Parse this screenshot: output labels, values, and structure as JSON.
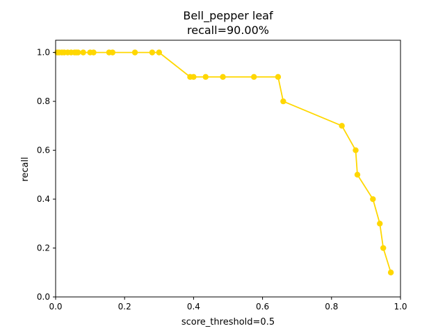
{
  "chart_data": {
    "type": "line",
    "title": "Bell_pepper leaf",
    "subtitle": "recall=90.00%",
    "xlabel": "score_threshold=0.5",
    "ylabel": "recall",
    "xlim": [
      0.0,
      1.0
    ],
    "ylim": [
      0.0,
      1.05
    ],
    "xticks": [
      "0.0",
      "0.2",
      "0.4",
      "0.6",
      "0.8",
      "1.0"
    ],
    "yticks": [
      "0.0",
      "0.2",
      "0.4",
      "0.6",
      "0.8",
      "1.0"
    ],
    "grid": false,
    "series": [
      {
        "color": "#ffd700",
        "x": [
          0.005,
          0.01,
          0.018,
          0.025,
          0.035,
          0.045,
          0.055,
          0.06,
          0.065,
          0.08,
          0.1,
          0.11,
          0.155,
          0.165,
          0.23,
          0.28,
          0.3,
          0.39,
          0.4,
          0.435,
          0.485,
          0.575,
          0.645,
          0.66,
          0.83,
          0.87,
          0.875,
          0.92,
          0.94,
          0.95,
          0.972
        ],
        "y": [
          1.0,
          1.0,
          1.0,
          1.0,
          1.0,
          1.0,
          1.0,
          1.0,
          1.0,
          1.0,
          1.0,
          1.0,
          1.0,
          1.0,
          1.0,
          1.0,
          1.0,
          0.9,
          0.9,
          0.9,
          0.9,
          0.9,
          0.9,
          0.8,
          0.7,
          0.6,
          0.5,
          0.4,
          0.3,
          0.2,
          0.1
        ]
      }
    ]
  }
}
